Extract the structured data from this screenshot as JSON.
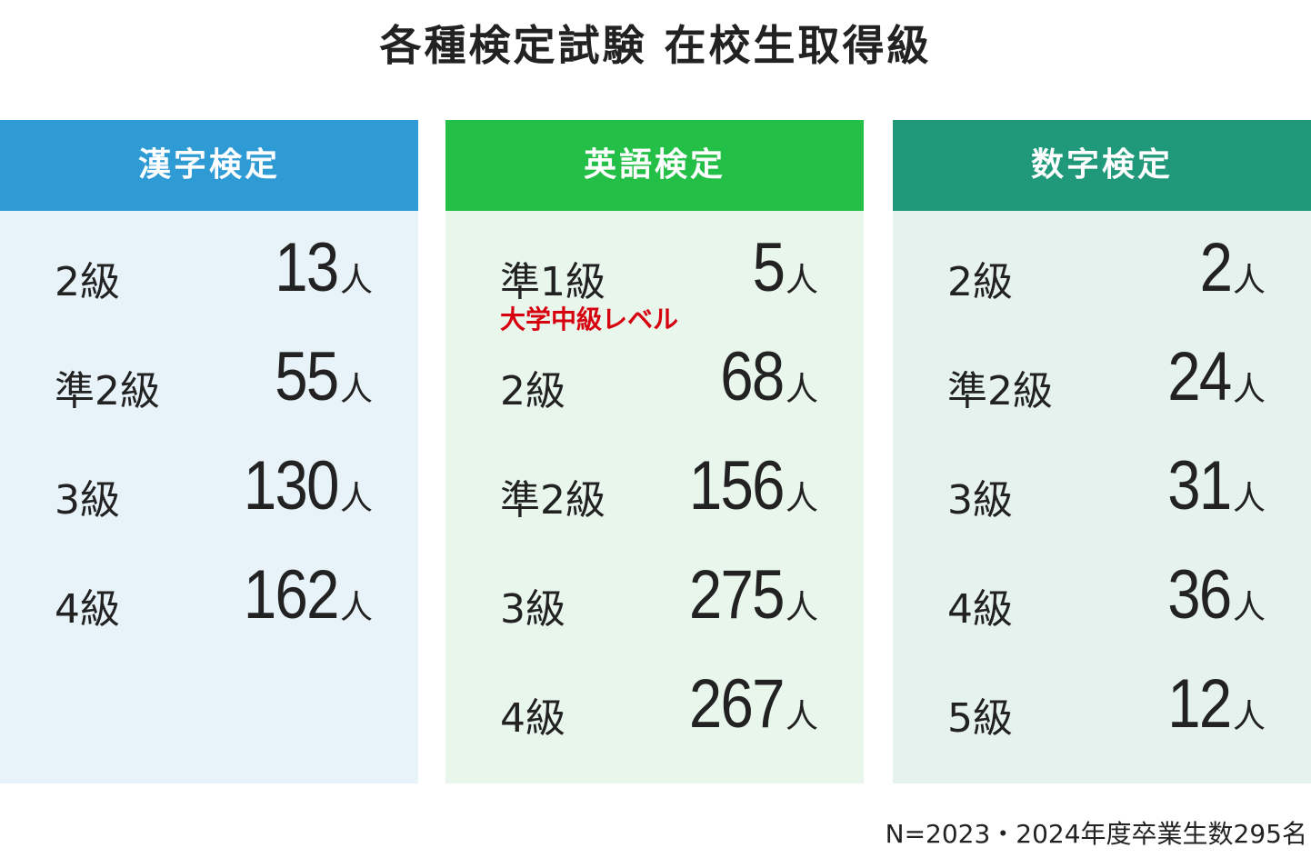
{
  "title": "各種検定試験 在校生取得級",
  "panels": [
    {
      "header": "漢字検定",
      "header_color": "#2f9bd5",
      "body_color": "#e8f3f9",
      "rows": [
        {
          "grade": "2級",
          "count": 13,
          "unit": "人"
        },
        {
          "grade": "準2級",
          "count": 55,
          "unit": "人"
        },
        {
          "grade": "3級",
          "count": 130,
          "unit": "人"
        },
        {
          "grade": "4級",
          "count": 162,
          "unit": "人"
        }
      ]
    },
    {
      "header": "英語検定",
      "header_color": "#23bf46",
      "body_color": "#e8f6ec",
      "rows": [
        {
          "grade": "準1級",
          "count": 5,
          "unit": "人",
          "note": "大学中級レベル"
        },
        {
          "grade": "2級",
          "count": 68,
          "unit": "人"
        },
        {
          "grade": "準2級",
          "count": 156,
          "unit": "人"
        },
        {
          "grade": "3級",
          "count": 275,
          "unit": "人"
        },
        {
          "grade": "4級",
          "count": 267,
          "unit": "人"
        }
      ]
    },
    {
      "header": "数字検定",
      "header_color": "#1f9979",
      "body_color": "#e6f2ee",
      "rows": [
        {
          "grade": "2級",
          "count": 2,
          "unit": "人"
        },
        {
          "grade": "準2級",
          "count": 24,
          "unit": "人"
        },
        {
          "grade": "3級",
          "count": 31,
          "unit": "人"
        },
        {
          "grade": "4級",
          "count": 36,
          "unit": "人"
        },
        {
          "grade": "5級",
          "count": 12,
          "unit": "人"
        }
      ]
    }
  ],
  "footnote": "N=2023・2024年度卒業生数295名"
}
